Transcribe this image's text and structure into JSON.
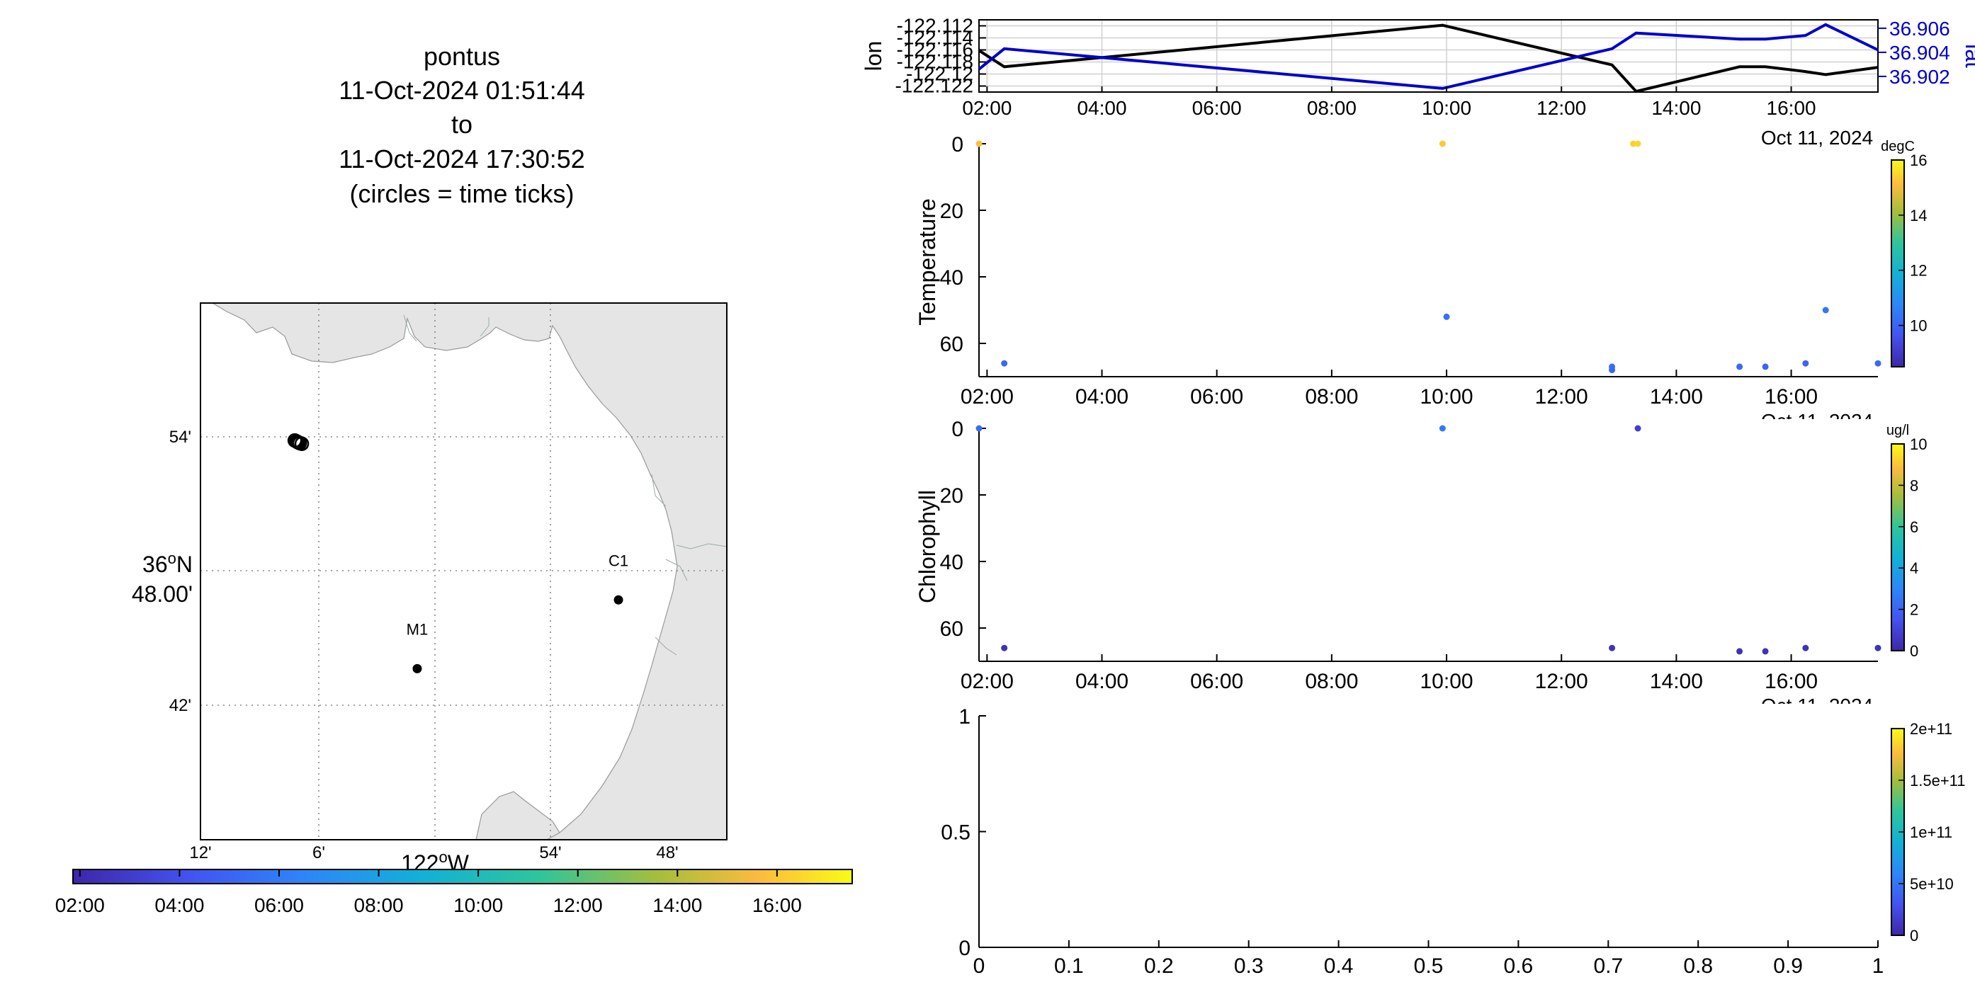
{
  "title_lines": [
    "pontus",
    "11-Oct-2024 01:51:44",
    "to",
    "11-Oct-2024 17:30:52",
    "(circles = time ticks)"
  ],
  "map": {
    "lon_ticks": [
      "12'",
      "6'",
      "54'",
      "48'"
    ],
    "lon_center_label": "122",
    "lon_center_suffix": "W",
    "lat_ticks": [
      "54'",
      "42'"
    ],
    "lat_center_label": "36",
    "lat_center_suffix": "N",
    "lat_center_minutes": "48.00'",
    "stations": [
      {
        "name": "C1",
        "lon": -121.903,
        "lat": 36.797
      },
      {
        "name": "M1",
        "lon": -122.046,
        "lat": 36.75
      }
    ],
    "track_circles": [
      {
        "lon": -122.133,
        "lat": 36.906
      },
      {
        "lon": -122.132,
        "lat": 36.9055
      },
      {
        "lon": -122.131,
        "lat": 36.905
      },
      {
        "lon": -122.1305,
        "lat": 36.9047
      },
      {
        "lon": -122.1295,
        "lat": 36.9042
      },
      {
        "lon": -122.128,
        "lat": 36.9038
      }
    ],
    "colorbar_ticks": [
      "02:00",
      "04:00",
      "06:00",
      "08:00",
      "10:00",
      "12:00",
      "14:00",
      "16:00"
    ]
  },
  "lonlat_panel": {
    "left_label": "lon",
    "right_label": "lat",
    "left_ticks": [
      "-122.112",
      "-122.114",
      "-122.116",
      "-122.118",
      "-122.12",
      "-122.122"
    ],
    "right_ticks": [
      "36.906",
      "36.904",
      "36.902"
    ],
    "x_ticks": [
      "02:00",
      "04:00",
      "06:00",
      "08:00",
      "10:00",
      "12:00",
      "14:00",
      "16:00"
    ],
    "date_label": "Oct 11, 2024"
  },
  "temperature_panel": {
    "ylabel": "Temperature",
    "y_ticks": [
      "0",
      "20",
      "40",
      "60"
    ],
    "x_ticks": [
      "02:00",
      "04:00",
      "06:00",
      "08:00",
      "10:00",
      "12:00",
      "14:00",
      "16:00"
    ],
    "date_label": "Oct 11, 2024",
    "cbar_unit": "degC",
    "cbar_ticks": [
      "16",
      "14",
      "12",
      "10"
    ]
  },
  "chlorophyll_panel": {
    "ylabel": "Chlorophyll",
    "y_ticks": [
      "0",
      "20",
      "40",
      "60"
    ],
    "x_ticks": [
      "02:00",
      "04:00",
      "06:00",
      "08:00",
      "10:00",
      "12:00",
      "14:00",
      "16:00"
    ],
    "date_label": "Oct 11, 2024",
    "cbar_unit": "ug/l",
    "cbar_ticks": [
      "10",
      "8",
      "6",
      "4",
      "2",
      "0"
    ]
  },
  "empty_panel": {
    "y_ticks": [
      "1",
      "0.5",
      "0"
    ],
    "x_ticks": [
      "0",
      "0.1",
      "0.2",
      "0.3",
      "0.4",
      "0.5",
      "0.6",
      "0.7",
      "0.8",
      "0.9",
      "1"
    ],
    "cbar_ticks": [
      "2e+11",
      "1.5e+11",
      "1e+11",
      "5e+10",
      "0"
    ]
  },
  "chart_data": [
    {
      "type": "line",
      "title": "",
      "x_unit": "hours on 11-Oct-2024",
      "xlim": [
        1.86,
        17.51
      ],
      "series": [
        {
          "name": "lon",
          "axis": "left",
          "color": "#000000",
          "x": [
            1.86,
            2.3,
            9.93,
            12.88,
            13.3,
            15.1,
            15.55,
            16.25,
            16.6,
            17.51
          ],
          "y": [
            -122.1161,
            -122.1188,
            -122.1119,
            -122.1185,
            -122.1229,
            -122.1188,
            -122.1188,
            -122.1196,
            -122.1201,
            -122.1189
          ]
        },
        {
          "name": "lat",
          "axis": "right",
          "color": "#0000CC",
          "x": [
            1.86,
            2.3,
            9.93,
            12.88,
            13.3,
            15.1,
            15.55,
            16.25,
            16.6,
            17.51
          ],
          "y": [
            36.9026,
            36.9043,
            36.901,
            36.9043,
            36.9056,
            36.9051,
            36.9051,
            36.9054,
            36.9063,
            36.9042
          ]
        }
      ],
      "ylim_left": [
        -122.123,
        -122.111
      ],
      "ylim_right": [
        36.9007,
        36.9067
      ]
    },
    {
      "type": "scatter",
      "ylabel": "Temperature",
      "y_axis_reversed": true,
      "ylim": [
        0,
        70
      ],
      "colorbar": "degC",
      "clim": [
        8.5,
        16
      ],
      "points": [
        {
          "x": 1.86,
          "y": 0,
          "c": 15.2
        },
        {
          "x": 2.3,
          "y": 66,
          "c": 10.1
        },
        {
          "x": 9.93,
          "y": 0,
          "c": 15.3
        },
        {
          "x": 10.0,
          "y": 52,
          "c": 10.3
        },
        {
          "x": 12.88,
          "y": 67,
          "c": 10.2
        },
        {
          "x": 12.88,
          "y": 68,
          "c": 10.1
        },
        {
          "x": 13.25,
          "y": 0,
          "c": 15.4
        },
        {
          "x": 13.33,
          "y": 0,
          "c": 15.5
        },
        {
          "x": 15.1,
          "y": 67,
          "c": 10.1
        },
        {
          "x": 15.55,
          "y": 67,
          "c": 10.0
        },
        {
          "x": 16.25,
          "y": 66,
          "c": 10.0
        },
        {
          "x": 16.6,
          "y": 50,
          "c": 10.4
        },
        {
          "x": 17.51,
          "y": 66,
          "c": 10.1
        }
      ]
    },
    {
      "type": "scatter",
      "ylabel": "Chlorophyll",
      "y_axis_reversed": true,
      "ylim": [
        0,
        70
      ],
      "colorbar": "ug/l",
      "clim": [
        0,
        10
      ],
      "points": [
        {
          "x": 1.86,
          "y": 0,
          "c": 2.3
        },
        {
          "x": 2.3,
          "y": 66,
          "c": 0.4
        },
        {
          "x": 9.93,
          "y": 0,
          "c": 2.6
        },
        {
          "x": 12.88,
          "y": 66,
          "c": 0.4
        },
        {
          "x": 13.33,
          "y": 0,
          "c": 0.8
        },
        {
          "x": 15.1,
          "y": 67,
          "c": 0.4
        },
        {
          "x": 15.55,
          "y": 67,
          "c": 0.4
        },
        {
          "x": 16.25,
          "y": 66,
          "c": 0.4
        },
        {
          "x": 17.51,
          "y": 66,
          "c": 0.4
        }
      ]
    },
    {
      "type": "scatter",
      "xlim": [
        0,
        1
      ],
      "ylim": [
        0,
        1
      ],
      "clim": [
        0,
        200000000000
      ],
      "points": []
    }
  ]
}
